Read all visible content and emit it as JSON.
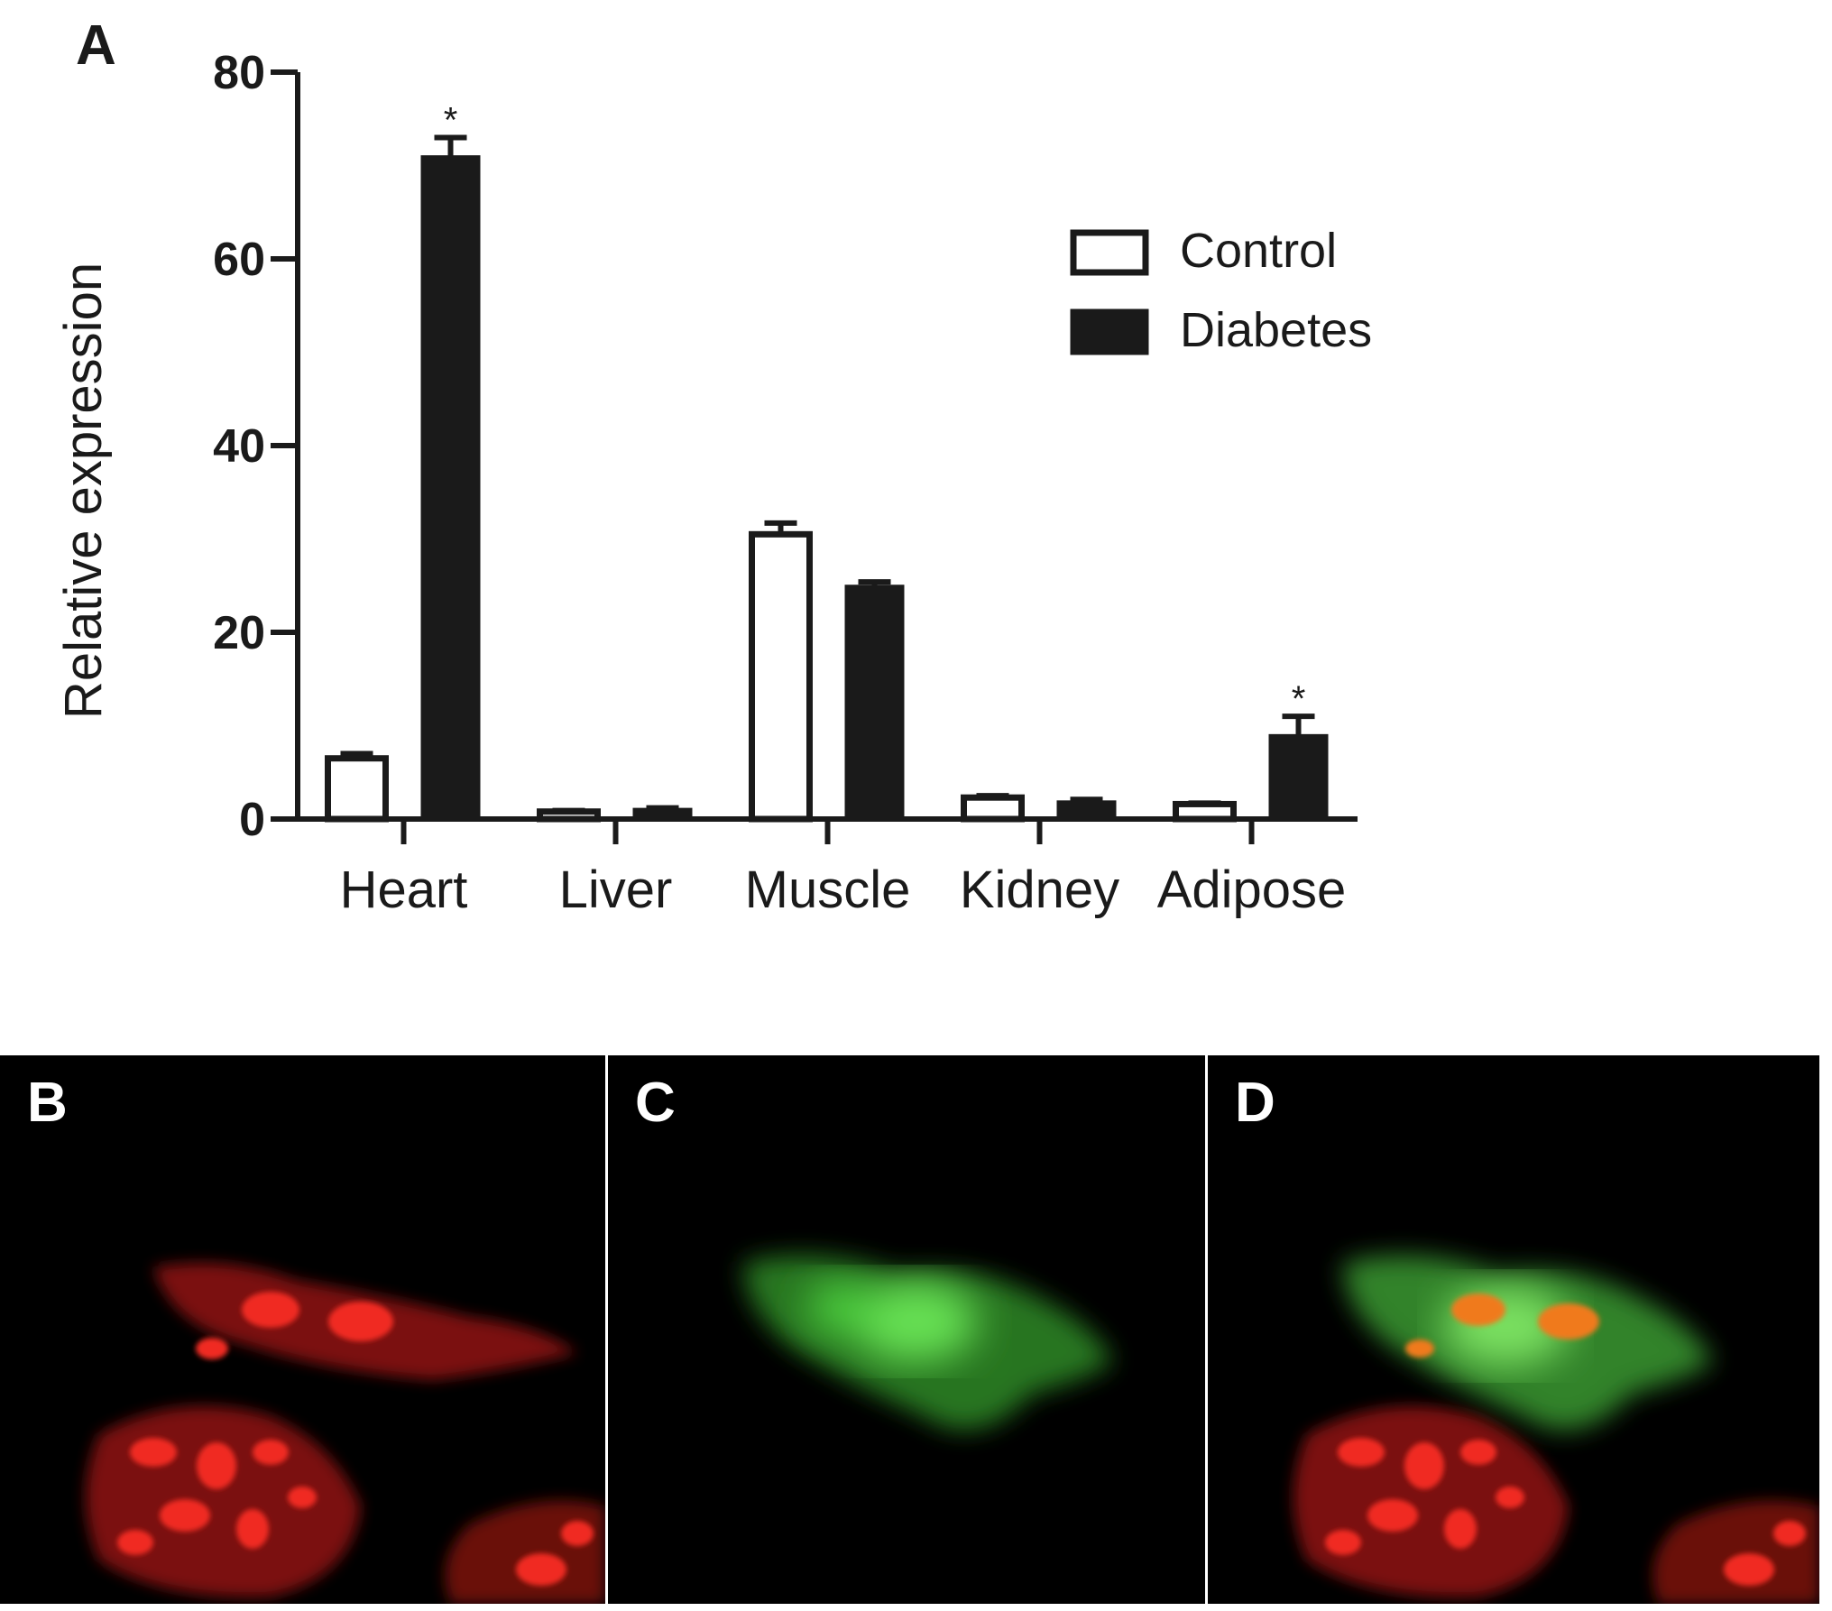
{
  "figure": {
    "panels": {
      "a": "A",
      "b": "B",
      "c": "C",
      "d": "D"
    }
  },
  "colors": {
    "control_fill": "#ffffff",
    "diabetes_fill": "#1a1a1a",
    "axis": "#1a1a1a",
    "micro_background": "#000000",
    "red_stain": "#e0201c",
    "green_stain": "#3fbf3a",
    "merge_overlap": "#f07a1a"
  },
  "chart_data": {
    "type": "bar",
    "title": "",
    "xlabel": "",
    "ylabel": "Relative expression",
    "categories": [
      "Heart",
      "Liver",
      "Muscle",
      "Kidney",
      "Adipose"
    ],
    "ylim": [
      0,
      80
    ],
    "yticks": [
      0,
      20,
      40,
      60,
      80
    ],
    "grid": false,
    "legend": "right",
    "series": [
      {
        "name": "Control",
        "fill": "#ffffff",
        "values": [
          6.5,
          0.8,
          30.5,
          2.3,
          1.6
        ],
        "errors": [
          0.5,
          0.1,
          1.2,
          0.2,
          0.1
        ]
      },
      {
        "name": "Diabetes",
        "fill": "#1a1a1a",
        "values": [
          71,
          1.1,
          25,
          1.9,
          9
        ],
        "errors": [
          2,
          0.1,
          0.4,
          0.2,
          2
        ]
      }
    ],
    "annotations": [
      {
        "series": "Diabetes",
        "category": "Heart",
        "text": "*"
      },
      {
        "series": "Diabetes",
        "category": "Adipose",
        "text": "*"
      }
    ]
  }
}
